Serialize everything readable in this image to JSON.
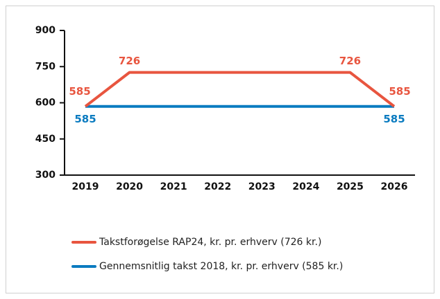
{
  "chart_data": {
    "type": "line",
    "categories": [
      "2019",
      "2020",
      "2021",
      "2022",
      "2023",
      "2024",
      "2025",
      "2026"
    ],
    "series": [
      {
        "name": "Takstforøgelse RAP24, kr. pr. erhverv (726 kr.)",
        "color": "#e8553f",
        "values": [
          585,
          726,
          726,
          726,
          726,
          726,
          726,
          585
        ],
        "value_labels": [
          "585",
          "726",
          null,
          null,
          null,
          null,
          "726",
          "585"
        ]
      },
      {
        "name": "Gennemsnitlig takst 2018, kr. pr. erhverv (585 kr.)",
        "color": "#0a7bc0",
        "values": [
          585,
          585,
          585,
          585,
          585,
          585,
          585,
          585
        ],
        "value_labels": [
          "585",
          null,
          null,
          null,
          null,
          null,
          null,
          "585"
        ]
      }
    ],
    "ylim": [
      300,
      900
    ],
    "yticks": [
      300,
      450,
      600,
      750,
      900
    ],
    "grid": false
  }
}
